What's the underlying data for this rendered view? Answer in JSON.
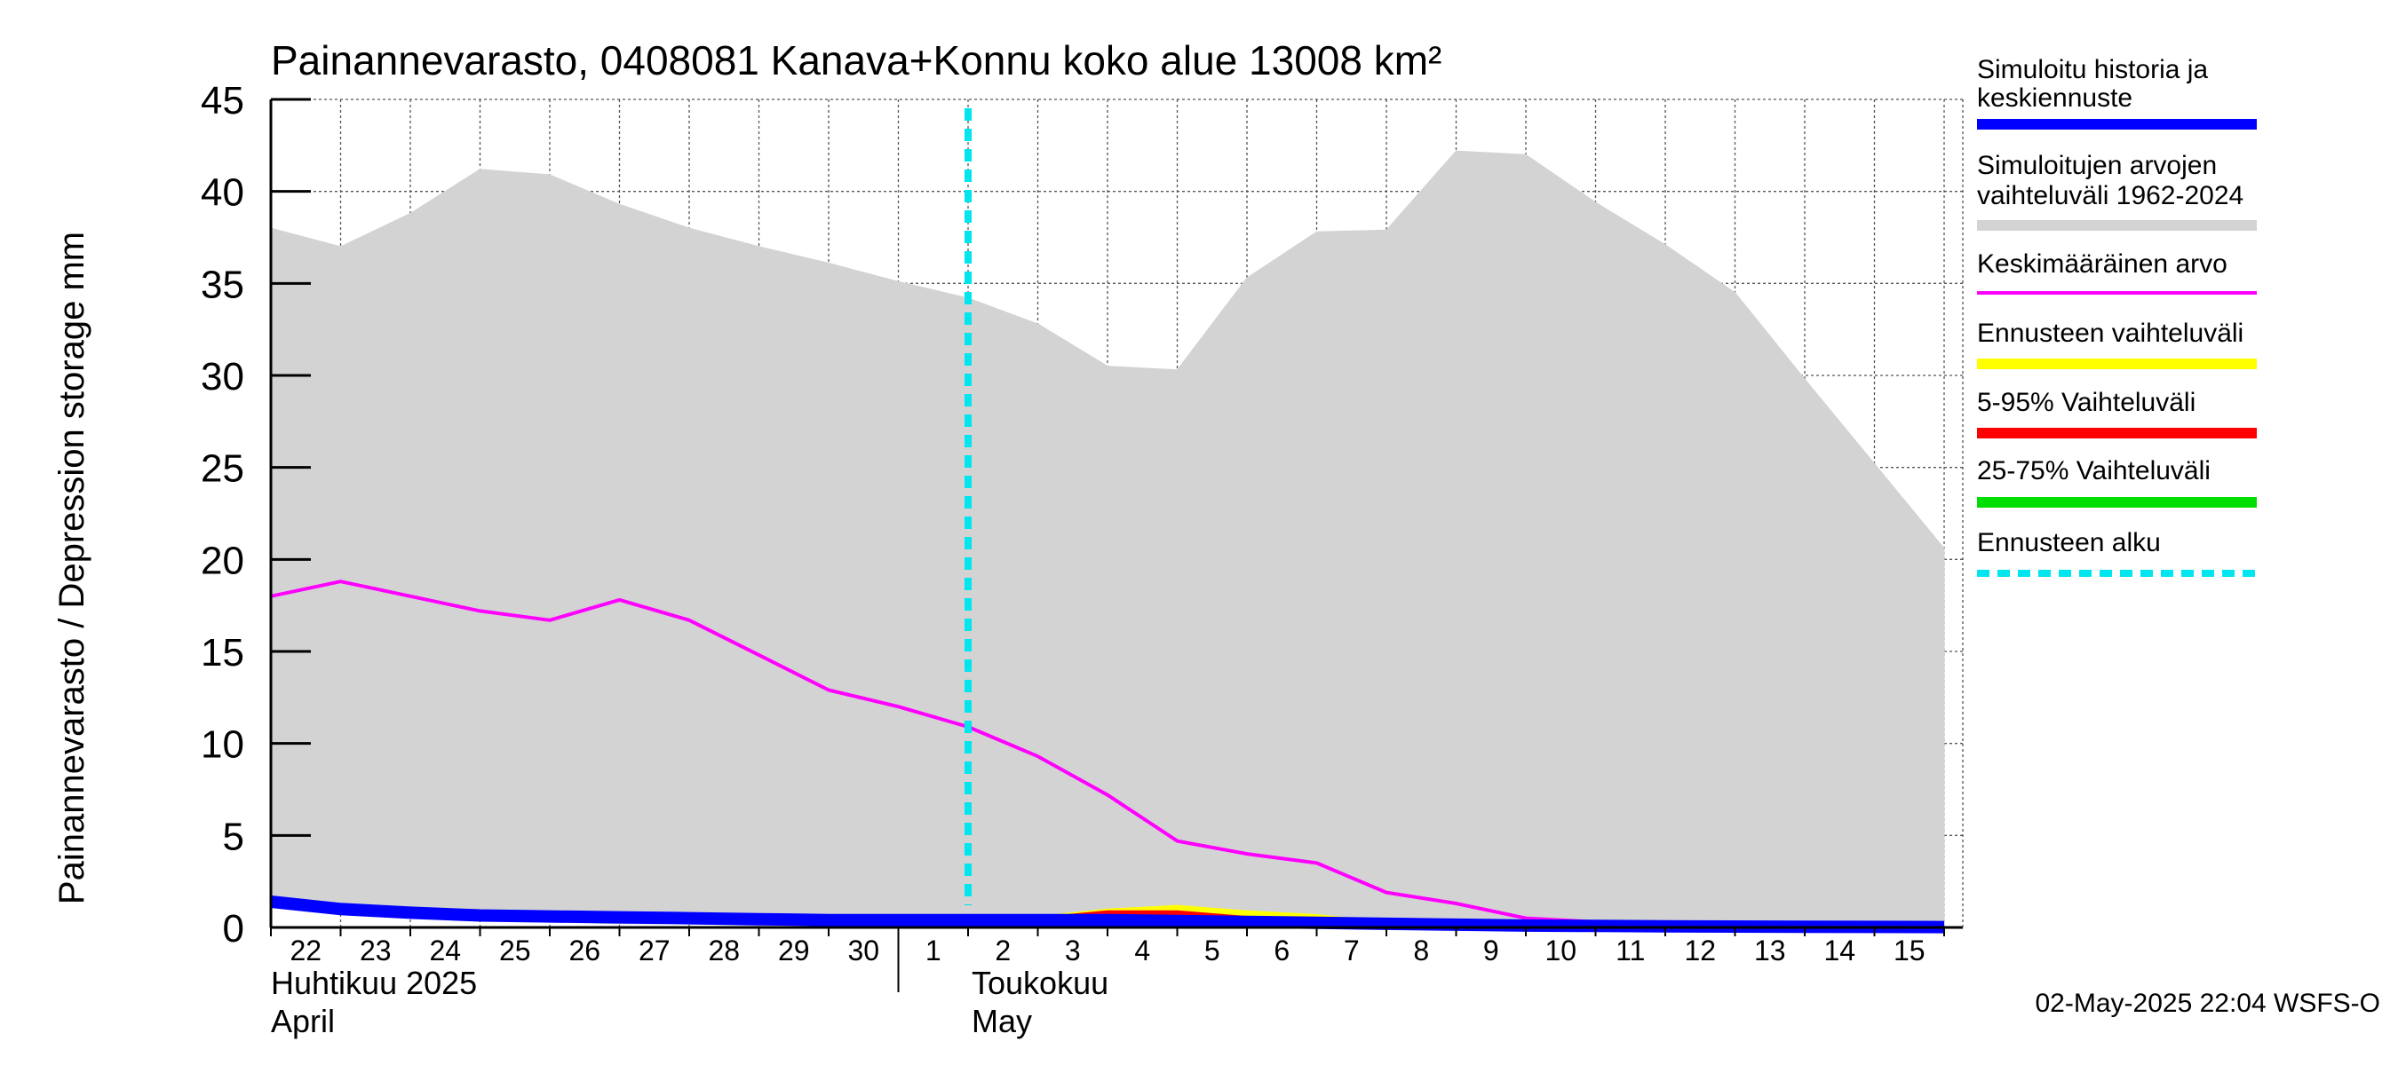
{
  "chart_data": {
    "type": "line",
    "title": "Painannevarasto, 0408081 Kanava+Konnu koko alue 13008 km²",
    "ylabel": "Painannevarasto / Depression storage    mm",
    "ylim": [
      0,
      45
    ],
    "yticks": [
      "0",
      "5",
      "10",
      "15",
      "20",
      "25",
      "30",
      "35",
      "40",
      "45"
    ],
    "x_tick_labels": [
      "22",
      "23",
      "24",
      "25",
      "26",
      "27",
      "28",
      "29",
      "30",
      "1",
      "2",
      "3",
      "4",
      "5",
      "6",
      "7",
      "8",
      "9",
      "10",
      "11",
      "12",
      "13",
      "14",
      "15"
    ],
    "x_dates": [
      "2025-04-22",
      "2025-04-23",
      "2025-04-24",
      "2025-04-25",
      "2025-04-26",
      "2025-04-27",
      "2025-04-28",
      "2025-04-29",
      "2025-04-30",
      "2025-05-01",
      "2025-05-02",
      "2025-05-03",
      "2025-05-04",
      "2025-05-05",
      "2025-05-06",
      "2025-05-07",
      "2025-05-08",
      "2025-05-09",
      "2025-05-10",
      "2025-05-11",
      "2025-05-12",
      "2025-05-13",
      "2025-05-14",
      "2025-05-15",
      "2025-05-16"
    ],
    "month_labels": [
      {
        "line1": "Huhtikuu  2025",
        "line2": "April"
      },
      {
        "line1": "Toukokuu",
        "line2": "May"
      }
    ],
    "forecast_start": "2025-05-02",
    "grid": true,
    "series": [
      {
        "name": "Simuloitujen arvojen vaihteluväli 1962-2024",
        "kind": "band",
        "color": "#d3d3d3",
        "upper": [
          38.0,
          37.0,
          38.8,
          41.2,
          40.9,
          39.3,
          38.0,
          37.0,
          36.1,
          35.1,
          34.2,
          32.8,
          30.5,
          30.3,
          35.3,
          37.8,
          37.9,
          42.2,
          42.0,
          39.4,
          37.1,
          34.5,
          29.8,
          25.2,
          20.6
        ],
        "lower": [
          1.3,
          0.7,
          0.5,
          0.4,
          0.3,
          0.2,
          0.2,
          0.1,
          0.1,
          0.1,
          0.1,
          0.1,
          0.1,
          0.0,
          0.0,
          0.0,
          0.0,
          0.0,
          0.0,
          0.0,
          0.0,
          0.0,
          0.0,
          0.0,
          0.0
        ]
      },
      {
        "name": "Keskimääräinen arvo",
        "kind": "line",
        "color": "#ff00ff",
        "values": [
          18.0,
          18.8,
          18.0,
          17.2,
          16.7,
          17.8,
          16.7,
          14.8,
          12.9,
          12.0,
          10.9,
          9.3,
          7.2,
          4.7,
          4.0,
          3.5,
          1.9,
          1.3,
          0.5,
          0.3,
          0.1,
          0.1,
          0.05,
          0.02,
          0.0
        ]
      },
      {
        "name": "Ennusteen vaihteluväli",
        "kind": "band",
        "color": "#ffff00",
        "x_start": "2025-05-02",
        "upper": [
          0.5,
          0.6,
          1.0,
          1.2,
          0.9,
          0.7,
          0.3,
          0.25,
          0.2,
          0.15,
          0.1,
          0.1,
          0.05,
          0.05,
          0.0
        ],
        "lower": [
          0.5,
          0.4,
          0.3,
          0.3,
          0.2,
          0.2,
          0.15,
          0.1,
          0.1,
          0.05,
          0.05,
          0.0,
          0.0,
          0.0,
          0.0
        ]
      },
      {
        "name": "5-95% Vaihteluväli",
        "kind": "band",
        "color": "#ff0000",
        "x_start": "2025-05-02",
        "upper": [
          0.5,
          0.55,
          0.9,
          0.9,
          0.6,
          0.5,
          0.3,
          0.2,
          0.15,
          0.1,
          0.1,
          0.05,
          0.05,
          0.0,
          0.0
        ],
        "lower": [
          0.5,
          0.45,
          0.35,
          0.3,
          0.25,
          0.2,
          0.15,
          0.1,
          0.1,
          0.05,
          0.05,
          0.0,
          0.0,
          0.0,
          0.0
        ]
      },
      {
        "name": "25-75% Vaihteluväli",
        "kind": "band",
        "color": "#00dd00",
        "x_start": "2025-05-02",
        "upper": [
          0.5,
          0.5,
          0.6,
          0.55,
          0.45,
          0.35,
          0.25,
          0.15,
          0.1,
          0.1,
          0.05,
          0.05,
          0.0,
          0.0,
          0.0
        ],
        "lower": [
          0.5,
          0.45,
          0.4,
          0.35,
          0.3,
          0.25,
          0.2,
          0.1,
          0.1,
          0.05,
          0.05,
          0.0,
          0.0,
          0.0,
          0.0
        ]
      },
      {
        "name": "Simuloitu historia ja keskiennuste",
        "kind": "line",
        "color": "#0000ff",
        "values": [
          1.4,
          1.0,
          0.8,
          0.65,
          0.6,
          0.55,
          0.5,
          0.45,
          0.4,
          0.4,
          0.4,
          0.4,
          0.4,
          0.35,
          0.3,
          0.25,
          0.2,
          0.15,
          0.1,
          0.08,
          0.06,
          0.05,
          0.04,
          0.03,
          0.02
        ]
      }
    ],
    "legend": [
      {
        "label": "Simuloitu historia ja\nkeskiennuste",
        "color": "#0000ff",
        "style": "solid"
      },
      {
        "label": "Simuloitujen arvojen\nvaihteluväli 1962-2024",
        "color": "#d3d3d3",
        "style": "solid"
      },
      {
        "label": "Keskimääräinen arvo",
        "color": "#ff00ff",
        "style": "thin"
      },
      {
        "label": "Ennusteen vaihteluväli",
        "color": "#ffff00",
        "style": "solid"
      },
      {
        "label": "5-95% Vaihteluväli",
        "color": "#ff0000",
        "style": "solid"
      },
      {
        "label": "25-75% Vaihteluväli",
        "color": "#00dd00",
        "style": "solid"
      },
      {
        "label": "Ennusteen alku",
        "color": "#00e5ee",
        "style": "dashed"
      }
    ],
    "legend_position": "right"
  },
  "footer": {
    "timestamp": "02-May-2025 22:04 WSFS-O"
  }
}
